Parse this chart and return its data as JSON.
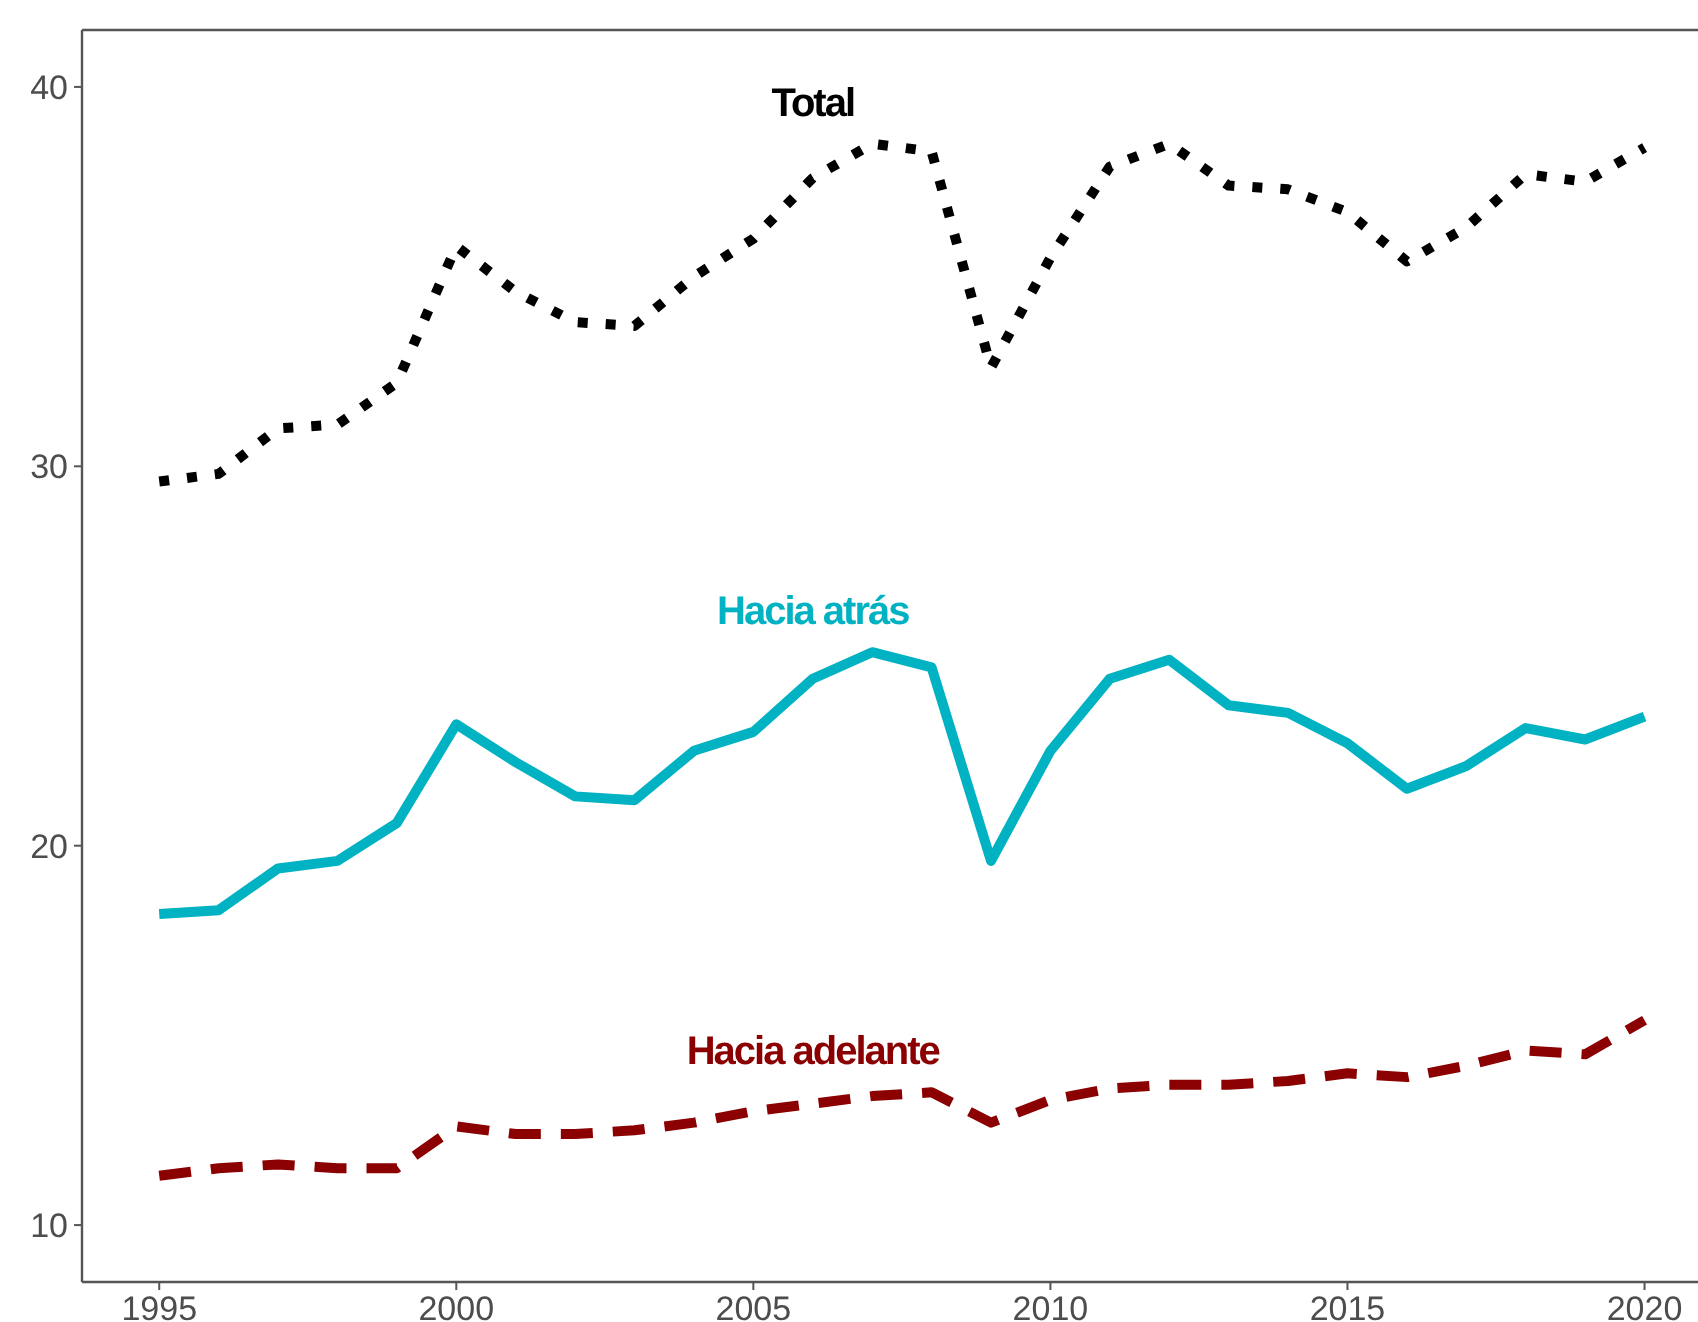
{
  "chart_data": {
    "type": "line",
    "x": [
      1995,
      1996,
      1997,
      1998,
      1999,
      2000,
      2001,
      2002,
      2003,
      2004,
      2005,
      2006,
      2007,
      2008,
      2009,
      2010,
      2011,
      2012,
      2013,
      2014,
      2015,
      2016,
      2017,
      2018,
      2019,
      2020
    ],
    "xlim": [
      1993.7,
      2020.9
    ],
    "xticks": [
      1995,
      2000,
      2005,
      2010,
      2015,
      2020
    ],
    "ylim": [
      8.5,
      41.5
    ],
    "yticks": [
      10,
      20,
      30,
      40
    ],
    "grid": false,
    "legend": false,
    "series": [
      {
        "name": "Total",
        "color": "#000000",
        "line_style": "dotted",
        "values": [
          29.6,
          29.8,
          31.0,
          31.1,
          32.2,
          35.8,
          34.6,
          33.8,
          33.7,
          35.0,
          36.0,
          37.6,
          38.5,
          38.3,
          32.6,
          35.5,
          37.9,
          38.5,
          37.4,
          37.3,
          36.7,
          35.4,
          36.3,
          37.7,
          37.5,
          38.4
        ]
      },
      {
        "name": "Hacia atrás",
        "color": "#00b2c2",
        "line_style": "solid",
        "values": [
          18.2,
          18.3,
          19.4,
          19.6,
          20.6,
          23.2,
          22.2,
          21.3,
          21.2,
          22.5,
          23.0,
          24.4,
          25.1,
          24.7,
          19.6,
          22.5,
          24.4,
          24.9,
          23.7,
          23.5,
          22.7,
          21.5,
          22.1,
          23.1,
          22.8,
          23.4
        ]
      },
      {
        "name": "Hacia adelante",
        "color": "#8b0000",
        "line_style": "dashed",
        "values": [
          11.3,
          11.5,
          11.6,
          11.5,
          11.5,
          12.6,
          12.4,
          12.4,
          12.5,
          12.7,
          13.0,
          13.2,
          13.4,
          13.5,
          12.7,
          13.3,
          13.6,
          13.7,
          13.7,
          13.8,
          14.0,
          13.9,
          14.2,
          14.6,
          14.5,
          15.4
        ]
      }
    ]
  }
}
